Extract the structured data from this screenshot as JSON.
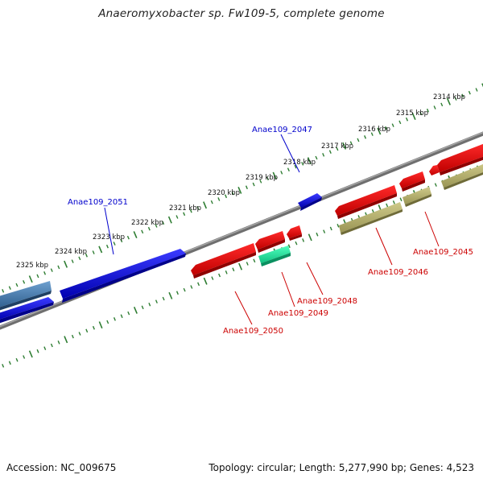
{
  "title": "Anaeromyxobacter sp. Fw109-5, complete genome",
  "accession": "Accession: NC_009675",
  "topology": "Topology: circular; Length: 5,277,990 bp; Genes: 4,523",
  "colors": {
    "backbone": "#7f7f7f",
    "tick": "#2e7d32",
    "forward_gene": "#0000e6",
    "forward_gene_other": "#4a7fb5",
    "reverse_gene": "#ee0000",
    "reverse_gene_alt": "#22e8a0",
    "reverse_gene_other": "#b5b06a",
    "forward_label": "#0000cc",
    "reverse_label": "#cc0000"
  },
  "scale_labels": [
    "2314 kbp",
    "2315 kbp",
    "2316 kbp",
    "2317 kbp",
    "2318 kbp",
    "2319 kbp",
    "2320 kbp",
    "2321 kbp",
    "2322 kbp",
    "2323 kbp",
    "2324 kbp",
    "2325 kbp"
  ],
  "genes": [
    {
      "label": "Anae109_2051",
      "strand": "forward",
      "color": "forward_gene"
    },
    {
      "label": "Anae109_2047",
      "strand": "forward",
      "color": "forward_gene"
    },
    {
      "label": "Anae109_2050",
      "strand": "reverse",
      "color": "reverse_gene"
    },
    {
      "label": "Anae109_2049",
      "strand": "reverse",
      "color": "reverse_gene_alt"
    },
    {
      "label": "Anae109_2048",
      "strand": "reverse",
      "color": "reverse_gene"
    },
    {
      "label": "Anae109_2046",
      "strand": "reverse",
      "color": "reverse_gene"
    },
    {
      "label": "Anae109_2045",
      "strand": "reverse",
      "color": "reverse_gene"
    }
  ]
}
